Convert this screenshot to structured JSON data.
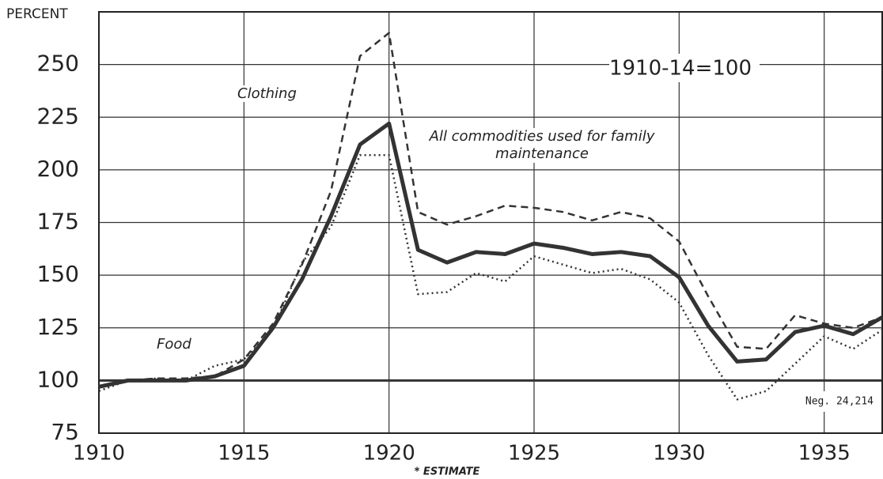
{
  "chart_data": {
    "type": "line",
    "y_label": "PERCENT",
    "base_note": "1910-14=100",
    "note": "* ESTIMATE",
    "neg_label": "Neg. 24,214",
    "x": [
      1910,
      1911,
      1912,
      1913,
      1914,
      1915,
      1916,
      1917,
      1918,
      1919,
      1920,
      1921,
      1922,
      1923,
      1924,
      1925,
      1926,
      1927,
      1928,
      1929,
      1930,
      1931,
      1932,
      1933,
      1934,
      1935,
      1936,
      1937
    ],
    "series": [
      {
        "name": "Clothing",
        "color": "#333333",
        "style": "dashed",
        "values": [
          97,
          100,
          101,
          101,
          102,
          110,
          127,
          155,
          190,
          254,
          265,
          180,
          174,
          178,
          183,
          182,
          180,
          176,
          180,
          177,
          166,
          140,
          116,
          115,
          131,
          127,
          125,
          130
        ]
      },
      {
        "name": "Food",
        "color": "#333333",
        "style": "dotted",
        "values": [
          95,
          100,
          101,
          100,
          107,
          110,
          124,
          156,
          173,
          207,
          207,
          141,
          142,
          151,
          147,
          159,
          155,
          151,
          153,
          148,
          137,
          112,
          91,
          95,
          108,
          121,
          115,
          124
        ]
      },
      {
        "name": "All commodities used for family maintenance",
        "color": "#333333",
        "style": "solid",
        "values": [
          97,
          100,
          100,
          100,
          102,
          107,
          125,
          148,
          178,
          212,
          222,
          162,
          156,
          161,
          160,
          165,
          163,
          160,
          161,
          159,
          149,
          126,
          109,
          110,
          123,
          126,
          122,
          130
        ]
      }
    ],
    "xlim": [
      1910,
      1937
    ],
    "xticks": [
      1910,
      1915,
      1920,
      1925,
      1930,
      1935
    ],
    "ylim": [
      75,
      275
    ],
    "yticks": [
      75,
      100,
      125,
      150,
      175,
      200,
      225,
      250
    ],
    "grid": true
  }
}
